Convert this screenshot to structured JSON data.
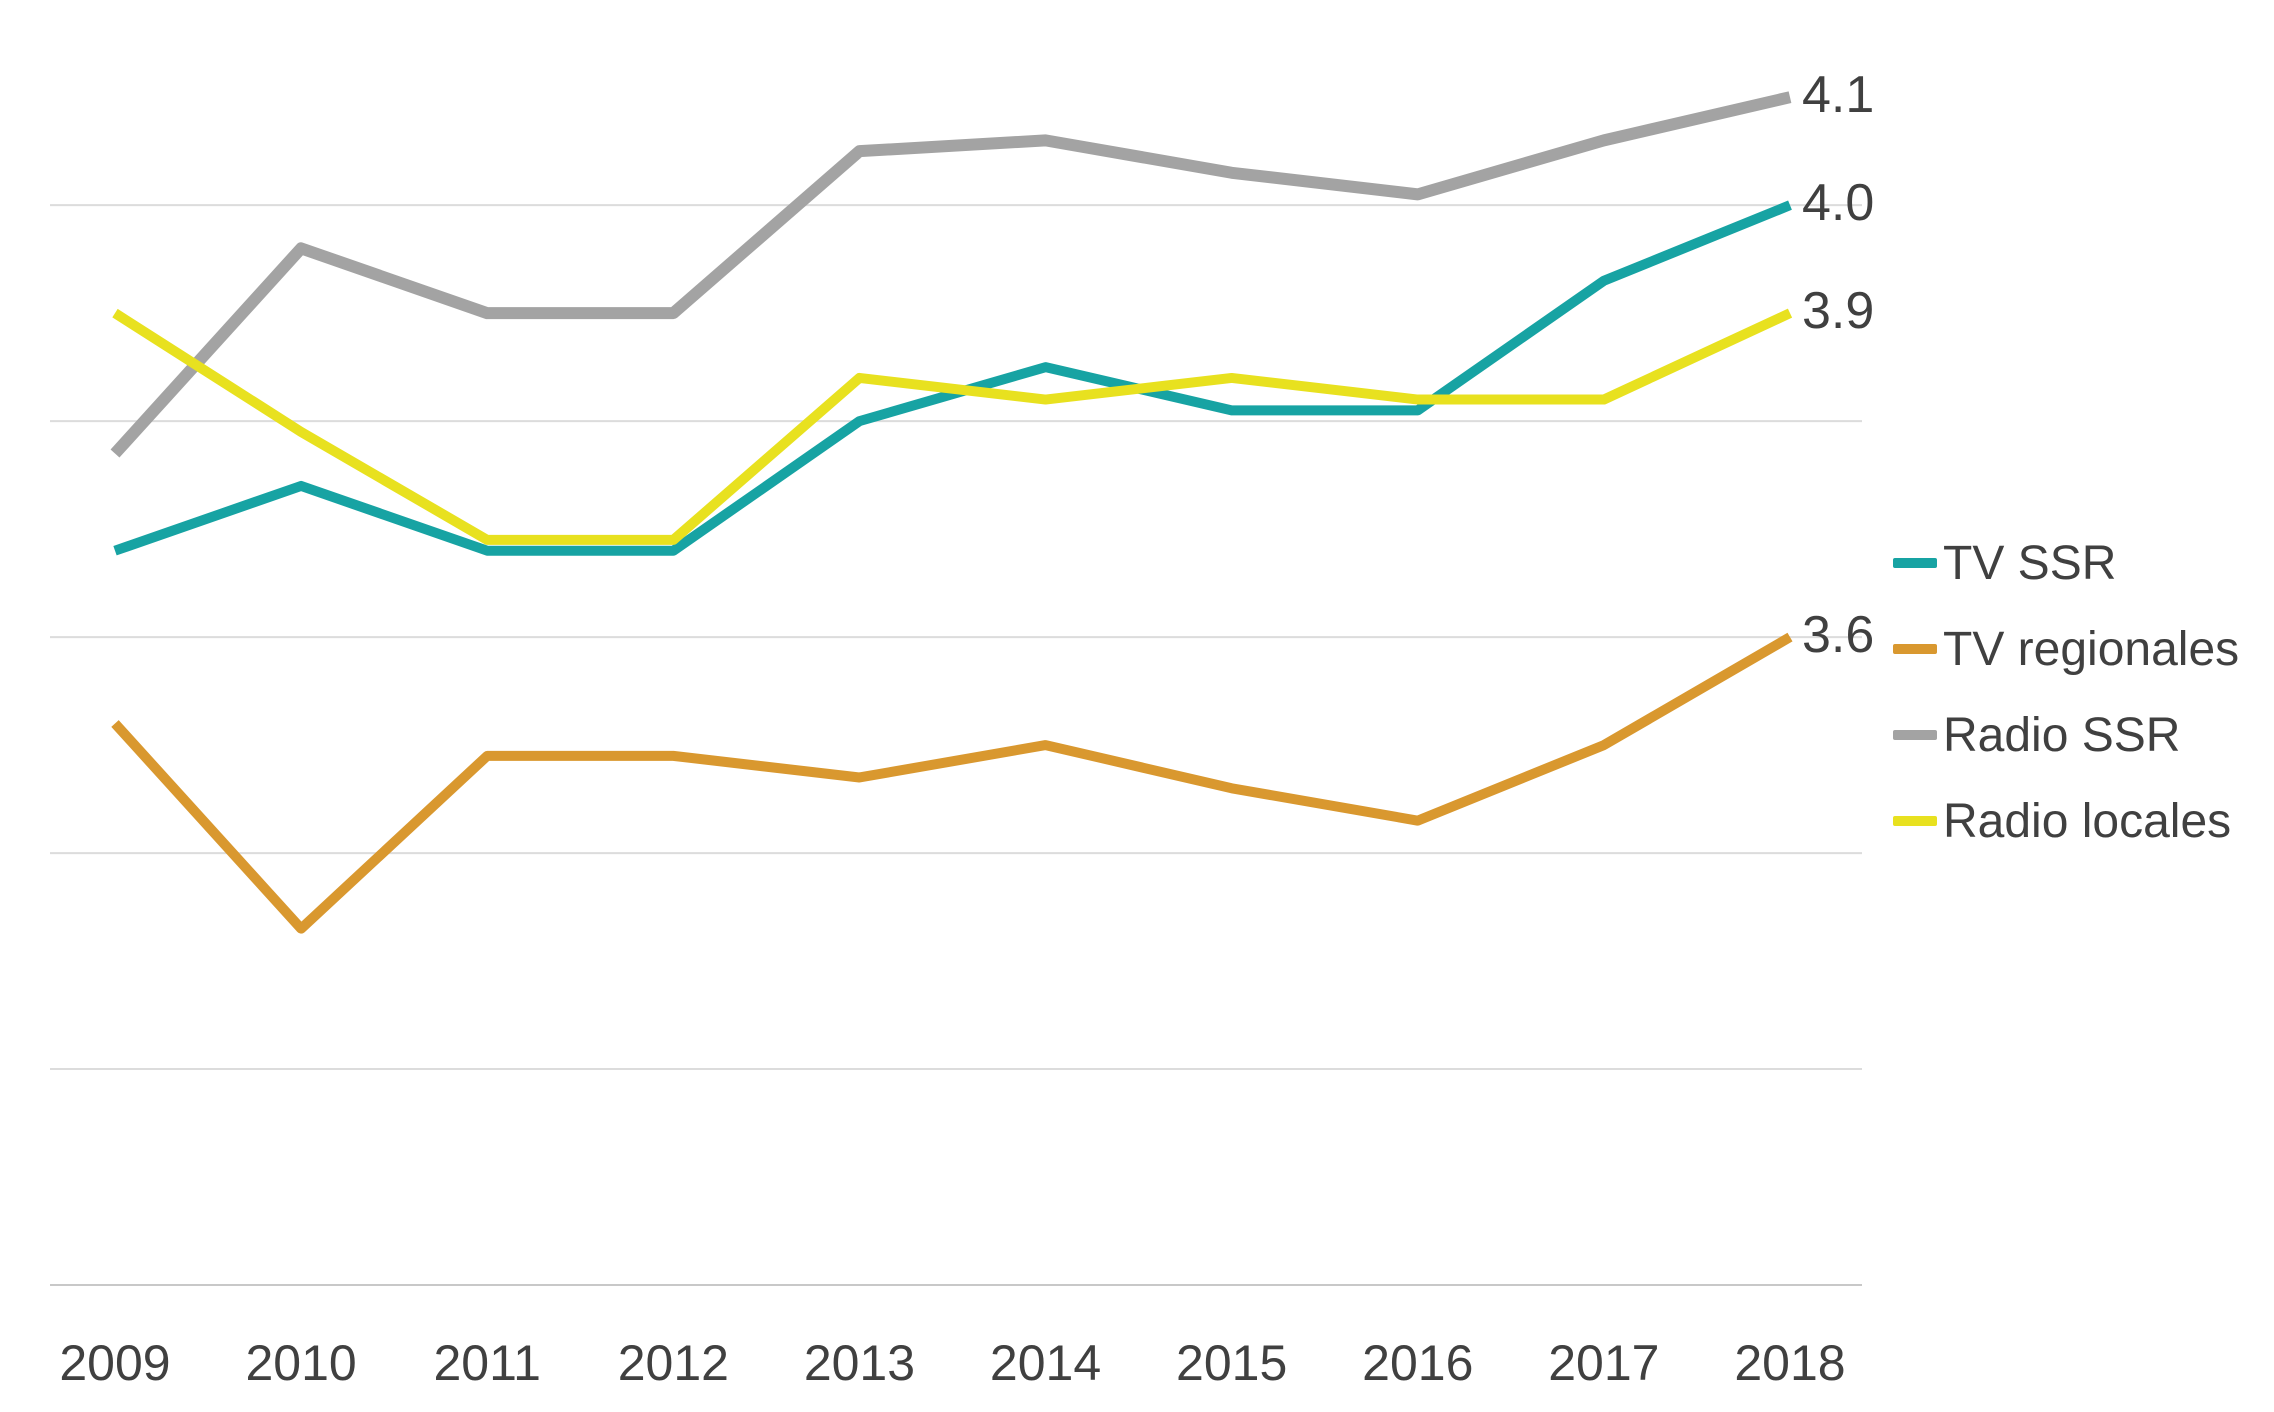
{
  "chart_data": {
    "type": "line",
    "title": "",
    "xlabel": "",
    "ylabel": "",
    "x": [
      "2009",
      "2010",
      "2011",
      "2012",
      "2013",
      "2014",
      "2015",
      "2016",
      "2017",
      "2018"
    ],
    "series": [
      {
        "name": "TV SSR",
        "color": "#17a3a3",
        "values": [
          3.68,
          3.74,
          3.68,
          3.68,
          3.8,
          3.85,
          3.81,
          3.81,
          3.93,
          4.0
        ],
        "end_label": "4.0"
      },
      {
        "name": "TV regionales",
        "color": "#d9982f",
        "values": [
          3.52,
          3.33,
          3.49,
          3.49,
          3.47,
          3.5,
          3.46,
          3.43,
          3.5,
          3.6
        ],
        "end_label": "3.6"
      },
      {
        "name": "Radio SSR",
        "color": "#a3a3a3",
        "values": [
          3.77,
          3.96,
          3.9,
          3.9,
          4.05,
          4.06,
          4.03,
          4.01,
          4.06,
          4.1
        ],
        "end_label": "4.1"
      },
      {
        "name": "Radio locales",
        "color": "#e8e11f",
        "values": [
          3.9,
          3.79,
          3.69,
          3.69,
          3.84,
          3.82,
          3.84,
          3.82,
          3.82,
          3.9
        ],
        "end_label": "3.9"
      }
    ],
    "ylim": [
      3.0,
      4.19
    ],
    "gridline_values": [
      3.0,
      3.2,
      3.4,
      3.6,
      3.8,
      4.0
    ],
    "grid": true,
    "legend_position": "right",
    "legend_order": [
      "TV SSR",
      "TV regionales",
      "Radio SSR",
      "Radio locales"
    ]
  },
  "colors": {
    "grid": "#dcdcdc",
    "axis": "#c8c8c8",
    "text": "#404040",
    "background": "#ffffff"
  }
}
